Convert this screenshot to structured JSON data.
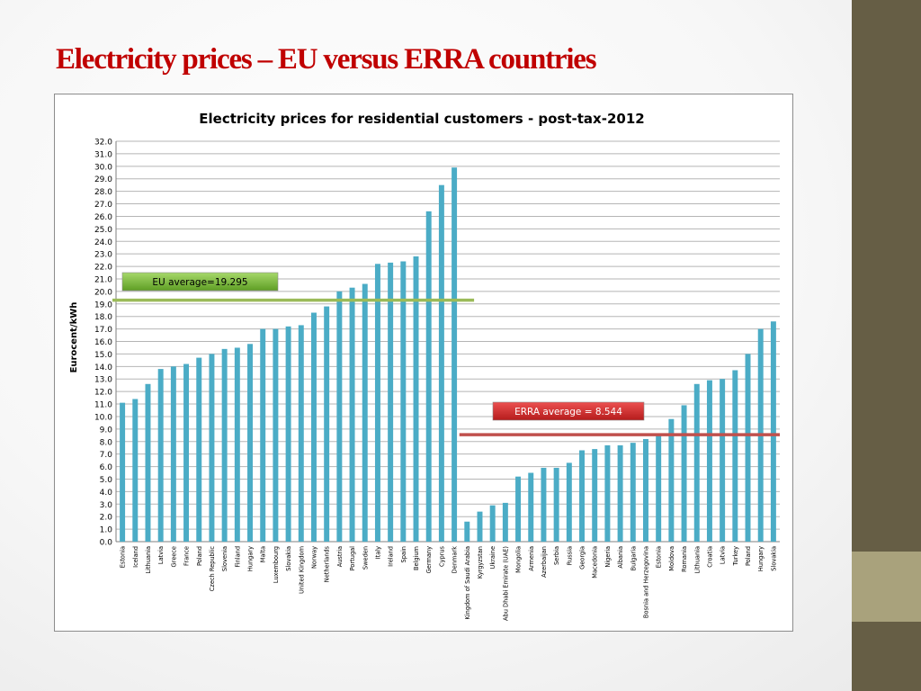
{
  "slide": {
    "title": "Electricity prices – EU versus ERRA countries",
    "accent_color": "#c00000",
    "sidebar_colors": [
      "#665e45",
      "#a9a27c"
    ]
  },
  "chart_data": {
    "type": "bar",
    "title": "Electricity prices for residential customers - post-tax-2012",
    "ylabel": "Eurocent/kWh",
    "xlabel": "",
    "ylim": [
      0,
      32
    ],
    "ytick_step": 1,
    "grid": true,
    "bar_color": "#4bacc6",
    "categories": [
      "Estonia",
      "Iceland",
      "Lithuania",
      "Latvia",
      "Greece",
      "France",
      "Poland",
      "Czech Republic",
      "Slovenia",
      "Finland",
      "Hungary",
      "Malta",
      "Luxembourg",
      "Slovakia",
      "United Kingdom",
      "Norway",
      "Netherlands",
      "Austria",
      "Portugal",
      "Sweden",
      "Italy",
      "Ireland",
      "Spain",
      "Belgium",
      "Germany",
      "Cyprus",
      "Denmark",
      "Kingdom of Saudi Arabia",
      "Kyrgyzstan",
      "Ukraine",
      "Abu Dhabi Emirate (UAE)",
      "Mongolia",
      "Armenia",
      "Azerbaijan",
      "Serbia",
      "Russia",
      "Georgia",
      "Macedonia",
      "Nigeria",
      "Albania",
      "Bulgaria",
      "Bosnia and Herzegovina",
      "Estonia",
      "Moldova",
      "Romania",
      "Lithuania",
      "Croatia",
      "Latvia",
      "Turkey",
      "Poland",
      "Hungary",
      "Slovakia"
    ],
    "values": [
      11.1,
      11.4,
      12.6,
      13.8,
      14.0,
      14.2,
      14.7,
      15.0,
      15.4,
      15.5,
      15.8,
      17.0,
      17.0,
      17.2,
      17.3,
      18.3,
      18.8,
      20.0,
      20.3,
      20.6,
      22.2,
      22.3,
      22.4,
      22.8,
      26.4,
      28.5,
      29.9,
      1.6,
      2.4,
      2.9,
      3.1,
      5.2,
      5.5,
      5.9,
      5.9,
      6.3,
      7.3,
      7.4,
      7.7,
      7.7,
      7.9,
      8.2,
      8.5,
      9.8,
      10.9,
      12.6,
      12.9,
      13.0,
      13.7,
      15.0,
      17.0,
      17.6
    ],
    "annotations": [
      {
        "text": "EU average=19.295",
        "value": 19.295,
        "line_color": "#9bbb59",
        "box_color": "#6fb12d",
        "text_color": "#000000",
        "from_category": 0,
        "to_category": 28
      },
      {
        "text": "ERRA average = 8.544",
        "value": 8.544,
        "line_color": "#c0504d",
        "box_color": "#d42a2a",
        "text_color": "#ffffff",
        "from_category": 27,
        "to_category": 51
      }
    ]
  }
}
